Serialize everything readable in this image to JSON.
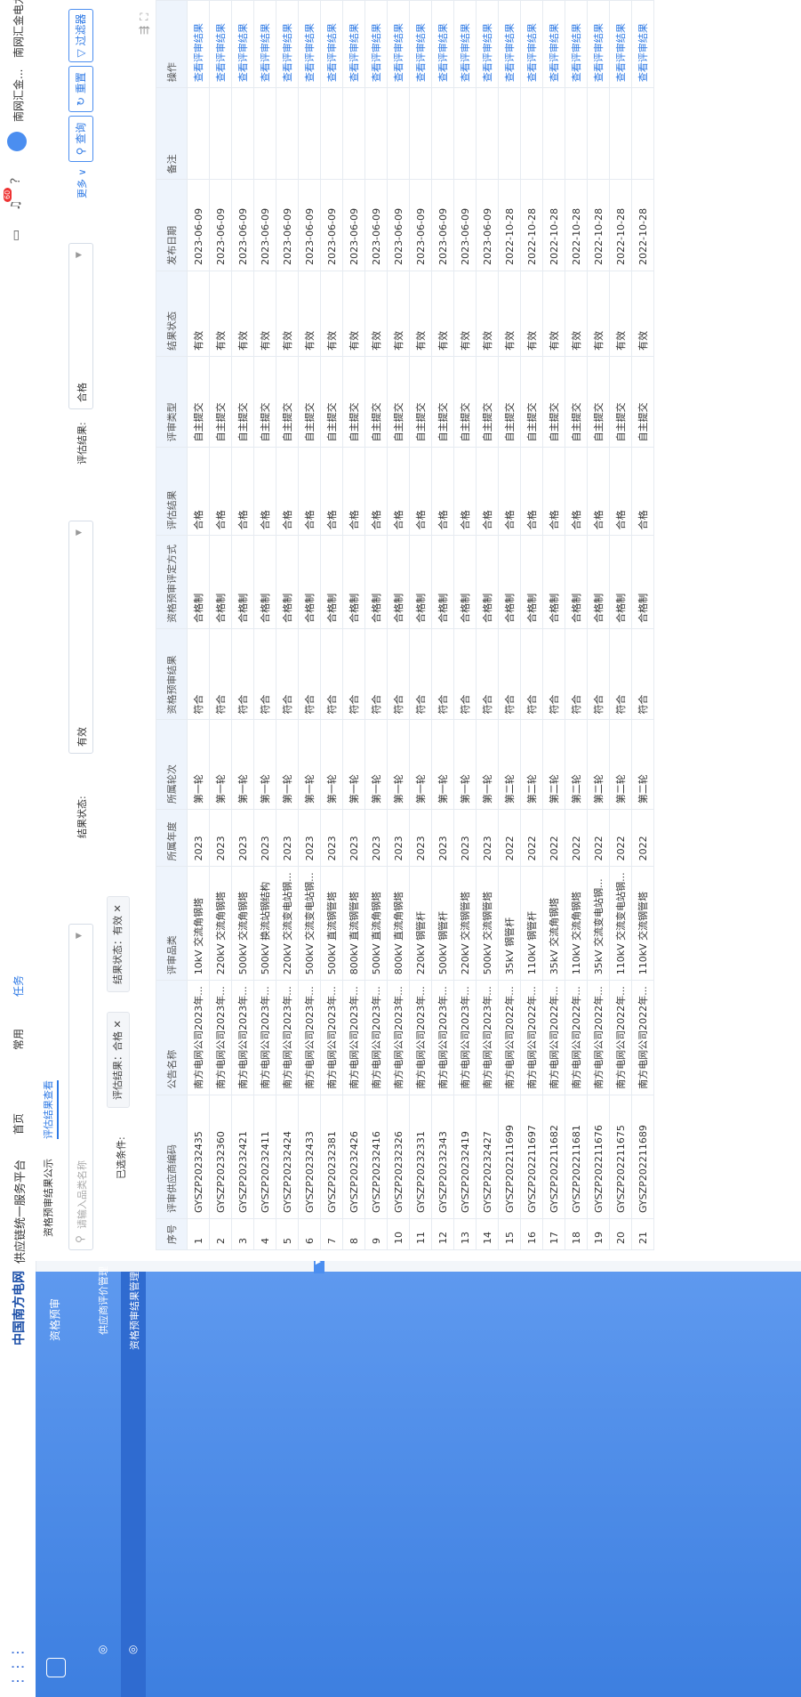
{
  "header": {
    "brand": "中国南方电网",
    "platform": "供应链统一服务平台",
    "nav": [
      "首页",
      "常用",
      "任务"
    ],
    "badge": "60",
    "user1": "南网汇金...",
    "user2": "南网汇金电力设..."
  },
  "sidebar": {
    "items": [
      "资格预审",
      "供应商评价管理",
      "资格预审结果管理"
    ]
  },
  "tabs": [
    "资格预审结果公示",
    "评估结果查看"
  ],
  "filters": {
    "category_placeholder": "请输入品类名称",
    "status_label": "结果状态:",
    "status_value": "有效",
    "result_label": "评估结果:",
    "result_value": "合格",
    "more": "更多",
    "query": "查询",
    "reset": "重置",
    "filter": "过滤器"
  },
  "selected": {
    "label": "已选条件:",
    "tags": [
      "评估结果：合格",
      "结果状态：有效"
    ]
  },
  "table": {
    "columns": [
      "序号",
      "评审供应商编码",
      "公告名称",
      "评审品类",
      "所属年度",
      "所属轮次",
      "资格预审结果",
      "资格预审评定方式",
      "评估结果",
      "评审类型",
      "结果状态",
      "发布日期",
      "备注",
      "操作"
    ],
    "rows": [
      [
        "1",
        "GYSZP20232435",
        "南方电网公司2023年...",
        "10kV 交流角钢塔",
        "2023",
        "第一轮",
        "符合",
        "合格制",
        "合格",
        "自主提交",
        "有效",
        "2023-06-09",
        "",
        "查看评审结果"
      ],
      [
        "2",
        "GYSZP20232360",
        "南方电网公司2023年...",
        "220kV 交流角钢塔",
        "2023",
        "第一轮",
        "符合",
        "合格制",
        "合格",
        "自主提交",
        "有效",
        "2023-06-09",
        "",
        "查看评审结果"
      ],
      [
        "3",
        "GYSZP20232421",
        "南方电网公司2023年...",
        "500kV 交流角钢塔",
        "2023",
        "第一轮",
        "符合",
        "合格制",
        "合格",
        "自主提交",
        "有效",
        "2023-06-09",
        "",
        "查看评审结果"
      ],
      [
        "4",
        "GYSZP20232411",
        "南方电网公司2023年...",
        "500kV 换流站钢结构",
        "2023",
        "第一轮",
        "符合",
        "合格制",
        "合格",
        "自主提交",
        "有效",
        "2023-06-09",
        "",
        "查看评审结果"
      ],
      [
        "5",
        "GYSZP20232424",
        "南方电网公司2023年...",
        "220kV 交流变电站钢...",
        "2023",
        "第一轮",
        "符合",
        "合格制",
        "合格",
        "自主提交",
        "有效",
        "2023-06-09",
        "",
        "查看评审结果"
      ],
      [
        "6",
        "GYSZP20232433",
        "南方电网公司2023年...",
        "500kV 交流变电站钢...",
        "2023",
        "第一轮",
        "符合",
        "合格制",
        "合格",
        "自主提交",
        "有效",
        "2023-06-09",
        "",
        "查看评审结果"
      ],
      [
        "7",
        "GYSZP20232381",
        "南方电网公司2023年...",
        "500kV 直流钢管塔",
        "2023",
        "第一轮",
        "符合",
        "合格制",
        "合格",
        "自主提交",
        "有效",
        "2023-06-09",
        "",
        "查看评审结果"
      ],
      [
        "8",
        "GYSZP20232426",
        "南方电网公司2023年...",
        "800kV 直流钢管塔",
        "2023",
        "第一轮",
        "符合",
        "合格制",
        "合格",
        "自主提交",
        "有效",
        "2023-06-09",
        "",
        "查看评审结果"
      ],
      [
        "9",
        "GYSZP20232416",
        "南方电网公司2023年...",
        "500kV 直流角钢塔",
        "2023",
        "第一轮",
        "符合",
        "合格制",
        "合格",
        "自主提交",
        "有效",
        "2023-06-09",
        "",
        "查看评审结果"
      ],
      [
        "10",
        "GYSZP20232326",
        "南方电网公司2023年...",
        "800kV 直流角钢塔",
        "2023",
        "第一轮",
        "符合",
        "合格制",
        "合格",
        "自主提交",
        "有效",
        "2023-06-09",
        "",
        "查看评审结果"
      ],
      [
        "11",
        "GYSZP20232331",
        "南方电网公司2023年...",
        "220kV 钢管杆",
        "2023",
        "第一轮",
        "符合",
        "合格制",
        "合格",
        "自主提交",
        "有效",
        "2023-06-09",
        "",
        "查看评审结果"
      ],
      [
        "12",
        "GYSZP20232343",
        "南方电网公司2023年...",
        "500kV 钢管杆",
        "2023",
        "第一轮",
        "符合",
        "合格制",
        "合格",
        "自主提交",
        "有效",
        "2023-06-09",
        "",
        "查看评审结果"
      ],
      [
        "13",
        "GYSZP20232419",
        "南方电网公司2023年...",
        "220kV 交流钢管塔",
        "2023",
        "第一轮",
        "符合",
        "合格制",
        "合格",
        "自主提交",
        "有效",
        "2023-06-09",
        "",
        "查看评审结果"
      ],
      [
        "14",
        "GYSZP20232427",
        "南方电网公司2023年...",
        "500kV 交流钢管塔",
        "2023",
        "第一轮",
        "符合",
        "合格制",
        "合格",
        "自主提交",
        "有效",
        "2023-06-09",
        "",
        "查看评审结果"
      ],
      [
        "15",
        "GYSZP202211699",
        "南方电网公司2022年...",
        "35kV 钢管杆",
        "2022",
        "第二轮",
        "符合",
        "合格制",
        "合格",
        "自主提交",
        "有效",
        "2022-10-28",
        "",
        "查看评审结果"
      ],
      [
        "16",
        "GYSZP202211697",
        "南方电网公司2022年...",
        "110kV 钢管杆",
        "2022",
        "第二轮",
        "符合",
        "合格制",
        "合格",
        "自主提交",
        "有效",
        "2022-10-28",
        "",
        "查看评审结果"
      ],
      [
        "17",
        "GYSZP202211682",
        "南方电网公司2022年...",
        "35kV 交流角钢塔",
        "2022",
        "第二轮",
        "符合",
        "合格制",
        "合格",
        "自主提交",
        "有效",
        "2022-10-28",
        "",
        "查看评审结果"
      ],
      [
        "18",
        "GYSZP202211681",
        "南方电网公司2022年...",
        "110kV 交流角钢塔",
        "2022",
        "第二轮",
        "符合",
        "合格制",
        "合格",
        "自主提交",
        "有效",
        "2022-10-28",
        "",
        "查看评审结果"
      ],
      [
        "19",
        "GYSZP202211676",
        "南方电网公司2022年...",
        "35kV 交流变电站钢...",
        "2022",
        "第二轮",
        "符合",
        "合格制",
        "合格",
        "自主提交",
        "有效",
        "2022-10-28",
        "",
        "查看评审结果"
      ],
      [
        "20",
        "GYSZP202211675",
        "南方电网公司2022年...",
        "110kV 交流变电站钢...",
        "2022",
        "第二轮",
        "符合",
        "合格制",
        "合格",
        "自主提交",
        "有效",
        "2022-10-28",
        "",
        "查看评审结果"
      ],
      [
        "21",
        "GYSZP202211689",
        "南方电网公司2022年...",
        "110kV 交流钢管塔",
        "2022",
        "第二轮",
        "符合",
        "合格制",
        "合格",
        "自主提交",
        "有效",
        "2022-10-28",
        "",
        "查看评审结果"
      ]
    ]
  }
}
